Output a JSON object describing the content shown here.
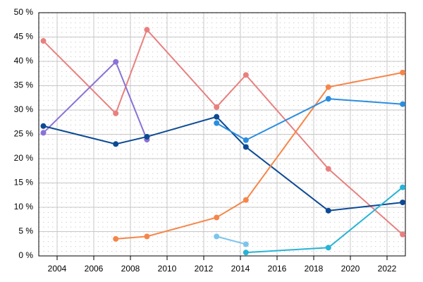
{
  "chart_data": {
    "type": "line",
    "x": [
      2003.25,
      2007.2,
      2008.9,
      2012.7,
      2014.3,
      2018.8,
      2022.85
    ],
    "series": [
      {
        "color": "#e88080",
        "values": [
          44.2,
          29.3,
          46.5,
          30.6,
          37.2,
          17.9,
          4.4
        ]
      },
      {
        "color": "#8a72d6",
        "values": [
          25.3,
          39.9,
          23.9,
          null,
          null,
          null,
          null
        ]
      },
      {
        "color": "#0d4a94",
        "values": [
          26.7,
          23.0,
          24.5,
          28.6,
          22.4,
          9.3,
          11.0
        ]
      },
      {
        "color": "#f5864a",
        "values": [
          null,
          3.5,
          4.0,
          7.9,
          11.5,
          34.7,
          37.7
        ]
      },
      {
        "color": "#2a8de0",
        "values": [
          null,
          null,
          null,
          27.3,
          23.8,
          32.3,
          31.2
        ]
      },
      {
        "color": "#7cc4ec",
        "values": [
          null,
          null,
          null,
          4.0,
          2.4,
          null,
          null
        ]
      },
      {
        "color": "#27b4d6",
        "values": [
          null,
          null,
          null,
          null,
          0.7,
          1.7,
          14.1
        ]
      }
    ],
    "xlim": [
      2003,
      2023
    ],
    "xticks": [
      2004,
      2006,
      2008,
      2010,
      2012,
      2014,
      2016,
      2018,
      2020,
      2022
    ],
    "ylim": [
      0,
      50
    ],
    "yticks": [
      {
        "value": 0,
        "label": "0 %"
      },
      {
        "value": 5,
        "label": "5 %"
      },
      {
        "value": 10,
        "label": "10 %"
      },
      {
        "value": 15,
        "label": "15 %"
      },
      {
        "value": 20,
        "label": "20 %"
      },
      {
        "value": 25,
        "label": "25 %"
      },
      {
        "value": 30,
        "label": "30 %"
      },
      {
        "value": 35,
        "label": "35 %"
      },
      {
        "value": 40,
        "label": "40 %"
      },
      {
        "value": 45,
        "label": "45 %"
      },
      {
        "value": 50,
        "label": "50 %"
      }
    ],
    "grid": true
  }
}
